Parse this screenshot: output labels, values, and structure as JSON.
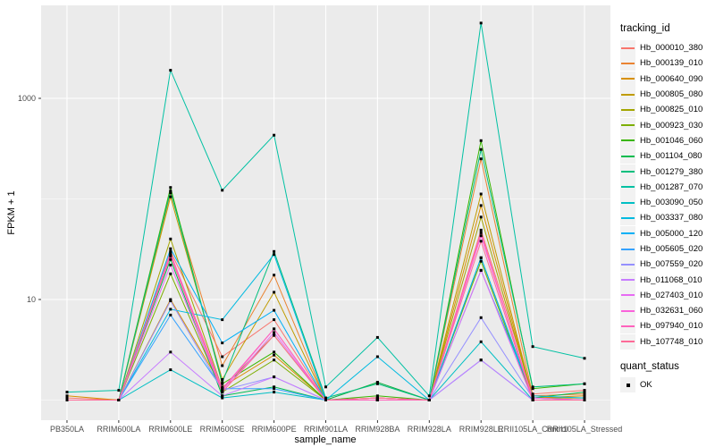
{
  "colors": {
    "outer_bg": "#ffffff",
    "panel_bg": "#ebebeb",
    "gridline": "#ffffff",
    "tick_mark": "#333333",
    "tick_label": "#4d4d4d",
    "axis_title": "#000000",
    "legend_key_bg": "#f2f2f2",
    "point_color": "#000000"
  },
  "chart_data": {
    "type": "line",
    "title": "",
    "xlabel": "sample_name",
    "ylabel": "FPKM + 1",
    "legend_title": "tracking_id",
    "legend_position": "right",
    "grid": true,
    "y_scale": "log10",
    "y_ticks": [
      {
        "label": "10",
        "value": 10
      },
      {
        "label": "1000",
        "value": 1000
      }
    ],
    "y_minor_gridlines": [
      1,
      100
    ],
    "ylim": [
      0.63,
      8400
    ],
    "x_categories": [
      "PB350LA",
      "RRIM600LA",
      "RRIM600LE",
      "RRIM600SE",
      "RRIM600PE",
      "RRIM901LA",
      "RRIM928BA",
      "RRIM928LA",
      "RRIM928LE",
      "RRII105LA_Control",
      "RRII105LA_Stressed"
    ],
    "point_marker": {
      "shape": "square",
      "color": "#000000",
      "size": 3
    },
    "quant_legend": {
      "title": "quant_status",
      "items": [
        {
          "label": "OK",
          "marker": "black-square"
        }
      ]
    },
    "series": [
      {
        "name": "Hb_000010_380",
        "color": "#F8766D",
        "values": [
          1.05,
          1,
          30,
          2.7,
          6.3,
          1,
          1.5,
          1,
          49,
          1.15,
          1.25
        ]
      },
      {
        "name": "Hb_000139_010",
        "color": "#EA8331",
        "values": [
          1,
          1,
          115,
          2.2,
          17.5,
          1,
          1.05,
          1,
          250,
          1.1,
          1.15
        ]
      },
      {
        "name": "Hb_000640_090",
        "color": "#D89000",
        "values": [
          1.1,
          1,
          10,
          1.35,
          2.8,
          1,
          1.05,
          1,
          86,
          1.05,
          1.1
        ]
      },
      {
        "name": "Hb_000805_080",
        "color": "#C09B00",
        "values": [
          1,
          1,
          105,
          1.6,
          11.8,
          1,
          1.05,
          1,
          112,
          1.05,
          1.05
        ]
      },
      {
        "name": "Hb_000825_010",
        "color": "#A3A500",
        "values": [
          1,
          1,
          40,
          1.3,
          4.4,
          1,
          1,
          1,
          66,
          1.05,
          1.05
        ]
      },
      {
        "name": "Hb_000923_030",
        "color": "#7CAE00",
        "values": [
          1,
          1,
          18,
          1.2,
          2.5,
          1,
          1,
          1,
          24,
          1,
          1
        ]
      },
      {
        "name": "Hb_001046_060",
        "color": "#39B600",
        "values": [
          1,
          1,
          130,
          1.45,
          3,
          1,
          1.1,
          1,
          380,
          1.3,
          1.45
        ]
      },
      {
        "name": "Hb_001104_080",
        "color": "#00BB4E",
        "values": [
          1,
          1,
          25,
          1.1,
          1.35,
          1,
          1.5,
          1,
          26,
          1.05,
          1.2
        ]
      },
      {
        "name": "Hb_001279_380",
        "color": "#00BF7D",
        "values": [
          1,
          1,
          120,
          1.5,
          30,
          1.05,
          1.45,
          1,
          310,
          1.35,
          1.45
        ]
      },
      {
        "name": "Hb_001287_070",
        "color": "#00C1A3",
        "values": [
          1.2,
          1.25,
          1900,
          122,
          430,
          1.35,
          4.2,
          1.1,
          5600,
          3.4,
          2.6
        ]
      },
      {
        "name": "Hb_003090_050",
        "color": "#00BFC4",
        "values": [
          1,
          1,
          2,
          1.05,
          1.2,
          1,
          1,
          1,
          3.8,
          1,
          1
        ]
      },
      {
        "name": "Hb_003337_080",
        "color": "#00BAE0",
        "values": [
          1,
          1,
          8,
          6.3,
          28,
          1,
          2.7,
          1,
          19.5,
          1.1,
          1.05
        ]
      },
      {
        "name": "Hb_005000_120",
        "color": "#00B0F6",
        "values": [
          1,
          1,
          32,
          3.7,
          7.8,
          1,
          1,
          1,
          26,
          1.05,
          1
        ]
      },
      {
        "name": "Hb_005605_020",
        "color": "#35A2FF",
        "values": [
          1,
          1,
          7,
          1.3,
          1.3,
          1,
          1,
          1,
          2.5,
          1,
          1
        ]
      },
      {
        "name": "Hb_007559_020",
        "color": "#9590FF",
        "values": [
          1,
          1,
          9.7,
          1.25,
          1.7,
          1,
          1,
          1,
          6.6,
          1.05,
          1
        ]
      },
      {
        "name": "Hb_011068_010",
        "color": "#C77CFF",
        "values": [
          1,
          1,
          3,
          1.1,
          1.7,
          1,
          1,
          1,
          2.5,
          1,
          1
        ]
      },
      {
        "name": "Hb_027403_010",
        "color": "#E76BF3",
        "values": [
          1,
          1,
          22,
          1.2,
          4.7,
          1,
          1,
          1,
          19.5,
          1,
          1
        ]
      },
      {
        "name": "Hb_032631_060",
        "color": "#FA62DB",
        "values": [
          1,
          1,
          28,
          1.25,
          5.1,
          1,
          1.05,
          1,
          43,
          1.05,
          1
        ]
      },
      {
        "name": "Hb_097940_010",
        "color": "#FF62BC",
        "values": [
          1,
          1,
          29,
          1.3,
          5.1,
          1,
          1,
          1,
          46,
          1,
          1
        ]
      },
      {
        "name": "Hb_107748_010",
        "color": "#FF6A98",
        "values": [
          1,
          1,
          27,
          1.2,
          4.4,
          1,
          1.05,
          1,
          38,
          1,
          1
        ]
      }
    ]
  }
}
